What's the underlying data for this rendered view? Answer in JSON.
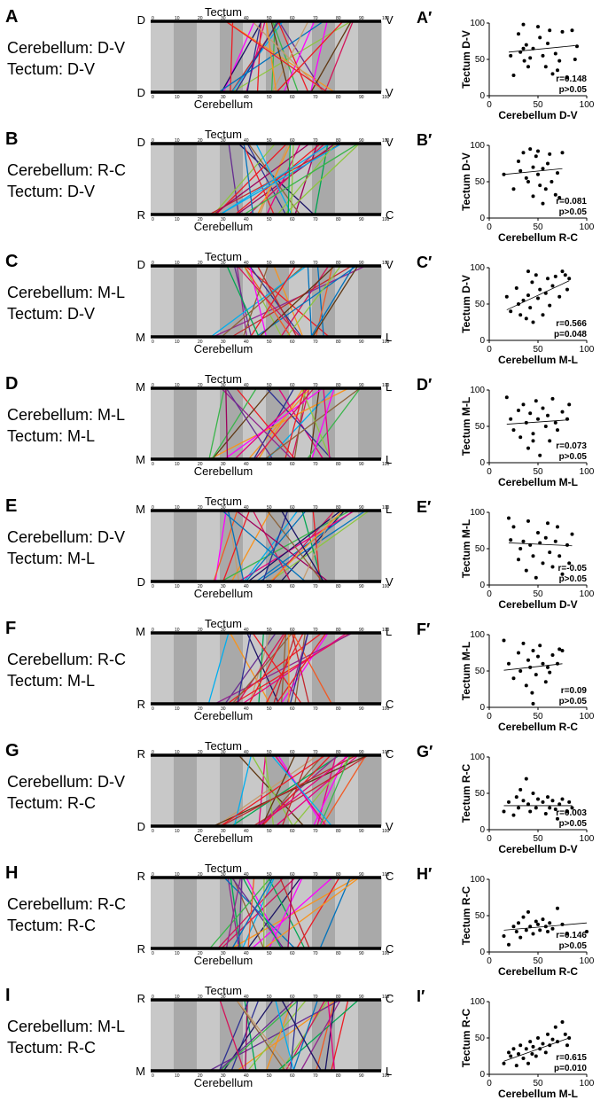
{
  "top_label": "Tectum",
  "bottom_label": "Cerebellum",
  "tick_labels": [
    "0",
    "10",
    "20",
    "30",
    "40",
    "50",
    "60",
    "70",
    "80",
    "90",
    "100"
  ],
  "panels": [
    {
      "letter": "A",
      "prime": "A′",
      "cerebellum": "Cerebellum: D-V",
      "tectum": "Tectum: D-V",
      "top_left": "D",
      "top_right": "V",
      "bottom_left": "D",
      "bottom_right": "V"
    },
    {
      "letter": "B",
      "prime": "B′",
      "cerebellum": "Cerebellum: R-C",
      "tectum": "Tectum: D-V",
      "top_left": "D",
      "top_right": "V",
      "bottom_left": "R",
      "bottom_right": "C"
    },
    {
      "letter": "C",
      "prime": "C′",
      "cerebellum": "Cerebellum: M-L",
      "tectum": "Tectum: D-V",
      "top_left": "D",
      "top_right": "V",
      "bottom_left": "M",
      "bottom_right": "L"
    },
    {
      "letter": "D",
      "prime": "D′",
      "cerebellum": "Cerebellum: M-L",
      "tectum": "Tectum: M-L",
      "top_left": "M",
      "top_right": "L",
      "bottom_left": "M",
      "bottom_right": "L"
    },
    {
      "letter": "E",
      "prime": "E′",
      "cerebellum": "Cerebellum: D-V",
      "tectum": "Tectum: M-L",
      "top_left": "M",
      "top_right": "L",
      "bottom_left": "D",
      "bottom_right": "V"
    },
    {
      "letter": "F",
      "prime": "F′",
      "cerebellum": "Cerebellum: R-C",
      "tectum": "Tectum: M-L",
      "top_left": "M",
      "top_right": "L",
      "bottom_left": "R",
      "bottom_right": "C"
    },
    {
      "letter": "G",
      "prime": "G′",
      "cerebellum": "Cerebellum: D-V",
      "tectum": "Tectum: R-C",
      "top_left": "R",
      "top_right": "C",
      "bottom_left": "D",
      "bottom_right": "V"
    },
    {
      "letter": "H",
      "prime": "H′",
      "cerebellum": "Cerebellum: R-C",
      "tectum": "Tectum: R-C",
      "top_left": "R",
      "top_right": "C",
      "bottom_left": "R",
      "bottom_right": "C"
    },
    {
      "letter": "I",
      "prime": "I′",
      "cerebellum": "Cerebellum: M-L",
      "tectum": "Tectum: R-C",
      "top_left": "R",
      "top_right": "C",
      "bottom_left": "M",
      "bottom_right": "L"
    }
  ],
  "chart_data": [
    {
      "type": "scatter",
      "panel": "A′",
      "xlabel": "Cerebellum D-V",
      "ylabel": "Tectum D-V",
      "xlim": [
        0,
        100
      ],
      "ylim": [
        0,
        100
      ],
      "xticks": [
        "0",
        "50",
        "100"
      ],
      "yticks": [
        "0",
        "50",
        "100"
      ],
      "stat_r": "r=0.148",
      "stat_p": "p>0.05",
      "fit": [
        20,
        60,
        88,
        69
      ],
      "points": [
        [
          22,
          55
        ],
        [
          25,
          28
        ],
        [
          30,
          85
        ],
        [
          32,
          60
        ],
        [
          35,
          65
        ],
        [
          36,
          48
        ],
        [
          38,
          70
        ],
        [
          40,
          40
        ],
        [
          42,
          52
        ],
        [
          45,
          65
        ],
        [
          50,
          95
        ],
        [
          52,
          80
        ],
        [
          55,
          55
        ],
        [
          58,
          40
        ],
        [
          60,
          72
        ],
        [
          62,
          90
        ],
        [
          65,
          30
        ],
        [
          68,
          58
        ],
        [
          70,
          35
        ],
        [
          72,
          48
        ],
        [
          75,
          88
        ],
        [
          80,
          25
        ],
        [
          85,
          90
        ],
        [
          88,
          50
        ],
        [
          90,
          68
        ],
        [
          35,
          98
        ]
      ]
    },
    {
      "type": "scatter",
      "panel": "B′",
      "xlabel": "Cerebellum  R-C",
      "ylabel": "Tectum D-V",
      "xlim": [
        0,
        100
      ],
      "ylim": [
        0,
        100
      ],
      "xticks": [
        "0",
        "50",
        "100"
      ],
      "yticks": [
        "0",
        "50",
        "100"
      ],
      "stat_r": "r=0.081",
      "stat_p": "p>0.05",
      "fit": [
        15,
        60,
        75,
        68
      ],
      "points": [
        [
          15,
          60
        ],
        [
          25,
          40
        ],
        [
          30,
          78
        ],
        [
          32,
          65
        ],
        [
          35,
          90
        ],
        [
          38,
          55
        ],
        [
          40,
          50
        ],
        [
          42,
          95
        ],
        [
          45,
          70
        ],
        [
          48,
          85
        ],
        [
          50,
          60
        ],
        [
          50,
          92
        ],
        [
          52,
          45
        ],
        [
          55,
          68
        ],
        [
          58,
          40
        ],
        [
          60,
          75
        ],
        [
          62,
          88
        ],
        [
          64,
          50
        ],
        [
          68,
          32
        ],
        [
          70,
          62
        ],
        [
          72,
          28
        ],
        [
          75,
          90
        ],
        [
          45,
          30
        ],
        [
          55,
          20
        ]
      ]
    },
    {
      "type": "scatter",
      "panel": "C′",
      "xlabel": "Cerebellum M-L",
      "ylabel": "Tectum D-V",
      "xlim": [
        0,
        100
      ],
      "ylim": [
        0,
        100
      ],
      "xticks": [
        "0",
        "50",
        "100"
      ],
      "yticks": [
        "0",
        "50",
        "100"
      ],
      "stat_r": "r=0.566",
      "stat_p": "p=0.048",
      "fit": [
        18,
        42,
        82,
        82
      ],
      "points": [
        [
          18,
          60
        ],
        [
          22,
          40
        ],
        [
          28,
          72
        ],
        [
          30,
          50
        ],
        [
          32,
          35
        ],
        [
          35,
          55
        ],
        [
          38,
          30
        ],
        [
          40,
          62
        ],
        [
          42,
          45
        ],
        [
          44,
          80
        ],
        [
          45,
          25
        ],
        [
          48,
          90
        ],
        [
          50,
          58
        ],
        [
          52,
          70
        ],
        [
          55,
          35
        ],
        [
          58,
          65
        ],
        [
          60,
          85
        ],
        [
          62,
          48
        ],
        [
          65,
          75
        ],
        [
          68,
          88
        ],
        [
          72,
          60
        ],
        [
          75,
          95
        ],
        [
          78,
          90
        ],
        [
          80,
          70
        ],
        [
          82,
          85
        ],
        [
          40,
          95
        ]
      ]
    },
    {
      "type": "scatter",
      "panel": "D′",
      "xlabel": "Cerebellum M-L",
      "ylabel": "Tectum M-L",
      "xlim": [
        0,
        100
      ],
      "ylim": [
        0,
        100
      ],
      "xticks": [
        "0",
        "50",
        "100"
      ],
      "yticks": [
        "0",
        "50",
        "100"
      ],
      "stat_r": "r=0.073",
      "stat_p": "p>0.05",
      "fit": [
        18,
        53,
        82,
        59
      ],
      "points": [
        [
          18,
          90
        ],
        [
          22,
          60
        ],
        [
          25,
          45
        ],
        [
          30,
          72
        ],
        [
          32,
          35
        ],
        [
          35,
          80
        ],
        [
          38,
          55
        ],
        [
          40,
          20
        ],
        [
          42,
          68
        ],
        [
          45,
          40
        ],
        [
          48,
          85
        ],
        [
          50,
          60
        ],
        [
          52,
          10
        ],
        [
          55,
          75
        ],
        [
          58,
          50
        ],
        [
          60,
          65
        ],
        [
          62,
          30
        ],
        [
          65,
          88
        ],
        [
          68,
          55
        ],
        [
          70,
          45
        ],
        [
          75,
          70
        ],
        [
          80,
          60
        ],
        [
          82,
          80
        ],
        [
          45,
          30
        ]
      ]
    },
    {
      "type": "scatter",
      "panel": "E′",
      "xlabel": "Cerebellum D-V",
      "ylabel": "Tectum M-L",
      "xlim": [
        0,
        100
      ],
      "ylim": [
        0,
        100
      ],
      "xticks": [
        "0",
        "50",
        "100"
      ],
      "yticks": [
        "0",
        "50",
        "100"
      ],
      "stat_r": "r=-0.05",
      "stat_p": "p>0.05",
      "fit": [
        20,
        58,
        85,
        54
      ],
      "points": [
        [
          20,
          92
        ],
        [
          22,
          62
        ],
        [
          25,
          80
        ],
        [
          30,
          35
        ],
        [
          32,
          50
        ],
        [
          35,
          60
        ],
        [
          38,
          20
        ],
        [
          40,
          88
        ],
        [
          42,
          55
        ],
        [
          45,
          40
        ],
        [
          48,
          10
        ],
        [
          50,
          72
        ],
        [
          52,
          58
        ],
        [
          55,
          30
        ],
        [
          58,
          65
        ],
        [
          60,
          85
        ],
        [
          62,
          45
        ],
        [
          65,
          25
        ],
        [
          68,
          60
        ],
        [
          70,
          80
        ],
        [
          72,
          40
        ],
        [
          75,
          15
        ],
        [
          80,
          55
        ],
        [
          85,
          70
        ],
        [
          82,
          30
        ]
      ]
    },
    {
      "type": "scatter",
      "panel": "F′",
      "xlabel": "Cerebellum R-C",
      "ylabel": "Tectum M-L",
      "xlim": [
        0,
        100
      ],
      "ylim": [
        0,
        100
      ],
      "xticks": [
        "0",
        "50",
        "100"
      ],
      "yticks": [
        "0",
        "50",
        "100"
      ],
      "stat_r": "r=0.09",
      "stat_p": "p>0.05",
      "fit": [
        15,
        51,
        75,
        60
      ],
      "points": [
        [
          15,
          92
        ],
        [
          20,
          60
        ],
        [
          25,
          40
        ],
        [
          30,
          75
        ],
        [
          32,
          50
        ],
        [
          35,
          88
        ],
        [
          38,
          30
        ],
        [
          40,
          65
        ],
        [
          42,
          55
        ],
        [
          44,
          20
        ],
        [
          45,
          78
        ],
        [
          48,
          45
        ],
        [
          50,
          70
        ],
        [
          52,
          85
        ],
        [
          55,
          60
        ],
        [
          58,
          35
        ],
        [
          60,
          55
        ],
        [
          62,
          48
        ],
        [
          65,
          72
        ],
        [
          70,
          60
        ],
        [
          72,
          80
        ],
        [
          75,
          78
        ],
        [
          45,
          5
        ]
      ]
    },
    {
      "type": "scatter",
      "panel": "G′",
      "xlabel": "Cerebellum D-V",
      "ylabel": "Tectum R-C",
      "xlim": [
        0,
        100
      ],
      "ylim": [
        0,
        100
      ],
      "xticks": [
        "0",
        "50",
        "100"
      ],
      "yticks": [
        "0",
        "50",
        "100"
      ],
      "stat_r": "r=0.003",
      "stat_p": "p>0.05",
      "fit": [
        15,
        33,
        85,
        33
      ],
      "points": [
        [
          15,
          25
        ],
        [
          20,
          38
        ],
        [
          25,
          20
        ],
        [
          28,
          45
        ],
        [
          30,
          30
        ],
        [
          32,
          55
        ],
        [
          35,
          40
        ],
        [
          38,
          70
        ],
        [
          40,
          35
        ],
        [
          42,
          25
        ],
        [
          45,
          50
        ],
        [
          48,
          30
        ],
        [
          50,
          42
        ],
        [
          55,
          38
        ],
        [
          58,
          22
        ],
        [
          60,
          45
        ],
        [
          62,
          30
        ],
        [
          65,
          40
        ],
        [
          68,
          28
        ],
        [
          70,
          15
        ],
        [
          72,
          35
        ],
        [
          75,
          42
        ],
        [
          80,
          25
        ],
        [
          82,
          38
        ],
        [
          85,
          30
        ]
      ]
    },
    {
      "type": "scatter",
      "panel": "H′",
      "xlabel": "Cerebellum R-C",
      "ylabel": "Tectum R-C",
      "xlim": [
        0,
        100
      ],
      "ylim": [
        0,
        100
      ],
      "xticks": [
        "0",
        "50",
        "100"
      ],
      "yticks": [
        "0",
        "50",
        "100"
      ],
      "stat_r": "r=0.146",
      "stat_p": "p>0.05",
      "fit": [
        15,
        30,
        100,
        40
      ],
      "points": [
        [
          15,
          22
        ],
        [
          20,
          10
        ],
        [
          25,
          35
        ],
        [
          28,
          28
        ],
        [
          30,
          40
        ],
        [
          32,
          20
        ],
        [
          35,
          48
        ],
        [
          38,
          30
        ],
        [
          40,
          55
        ],
        [
          42,
          35
        ],
        [
          45,
          25
        ],
        [
          48,
          42
        ],
        [
          50,
          38
        ],
        [
          52,
          30
        ],
        [
          55,
          45
        ],
        [
          58,
          35
        ],
        [
          60,
          28
        ],
        [
          62,
          40
        ],
        [
          65,
          32
        ],
        [
          70,
          60
        ],
        [
          75,
          38
        ],
        [
          80,
          25
        ],
        [
          100,
          28
        ]
      ]
    },
    {
      "type": "scatter",
      "panel": "I′",
      "xlabel": "Cerebellum M-L",
      "ylabel": "Tectum R-C",
      "xlim": [
        0,
        100
      ],
      "ylim": [
        0,
        100
      ],
      "xticks": [
        "0",
        "50",
        "100"
      ],
      "yticks": [
        "0",
        "50",
        "100"
      ],
      "stat_r": "r=0.615",
      "stat_p": "p=0.010",
      "fit": [
        15,
        18,
        82,
        50
      ],
      "points": [
        [
          15,
          15
        ],
        [
          20,
          30
        ],
        [
          22,
          25
        ],
        [
          25,
          35
        ],
        [
          28,
          12
        ],
        [
          30,
          28
        ],
        [
          32,
          40
        ],
        [
          35,
          22
        ],
        [
          38,
          35
        ],
        [
          40,
          15
        ],
        [
          42,
          45
        ],
        [
          44,
          28
        ],
        [
          45,
          38
        ],
        [
          48,
          25
        ],
        [
          50,
          50
        ],
        [
          52,
          35
        ],
        [
          55,
          42
        ],
        [
          58,
          30
        ],
        [
          60,
          55
        ],
        [
          62,
          40
        ],
        [
          65,
          48
        ],
        [
          68,
          65
        ],
        [
          70,
          45
        ],
        [
          75,
          72
        ],
        [
          78,
          55
        ],
        [
          80,
          40
        ],
        [
          82,
          50
        ]
      ]
    }
  ]
}
